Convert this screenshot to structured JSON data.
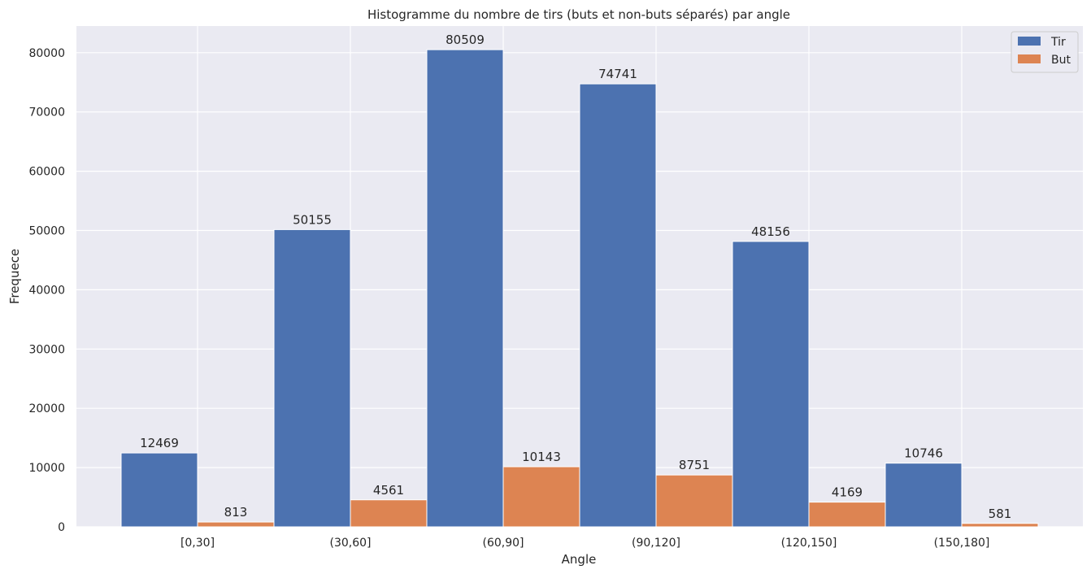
{
  "chart_data": {
    "type": "bar",
    "title": "Histogramme du nombre de tirs (buts et non-buts séparés) par angle",
    "xlabel": "Angle",
    "ylabel": "Frequece",
    "categories": [
      "[0,30]",
      "(30,60]",
      "(60,90]",
      "(90,120]",
      "(120,150]",
      "(150,180]"
    ],
    "series": [
      {
        "name": "Tir",
        "color": "#4c72b0",
        "values": [
          12469,
          50155,
          80509,
          74741,
          48156,
          10746
        ]
      },
      {
        "name": "But",
        "color": "#dd8452",
        "values": [
          813,
          4561,
          10143,
          8751,
          4169,
          581
        ]
      }
    ],
    "ylim": [
      0,
      84500
    ],
    "yticks": [
      0,
      10000,
      20000,
      30000,
      40000,
      50000,
      60000,
      70000,
      80000
    ],
    "grid": true,
    "legend": "top-right",
    "background_color": "#eaeaf2",
    "grid_color": "#ffffff"
  }
}
